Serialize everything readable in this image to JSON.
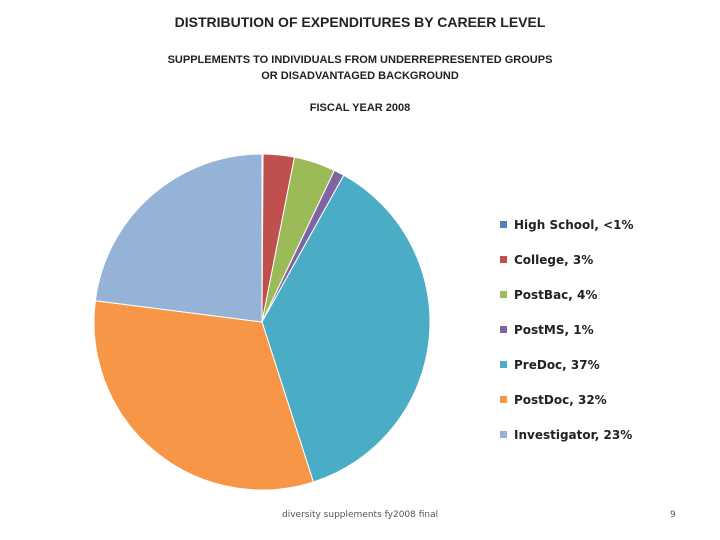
{
  "header": {
    "title": "DISTRIBUTION OF EXPENDITURES BY CAREER LEVEL",
    "subtitle_line1": "SUPPLEMENTS TO INDIVIDUALS FROM UNDERREPRESENTED GROUPS",
    "subtitle_line2": "OR DISADVANTAGED BACKGROUND",
    "fiscal_year": "FISCAL YEAR 2008"
  },
  "chart_data": {
    "type": "pie",
    "title": "DISTRIBUTION OF EXPENDITURES BY CAREER LEVEL",
    "legend_position": "right",
    "slices": [
      {
        "label": "High School, <1%",
        "value": 0.1,
        "color": "#4f81bd"
      },
      {
        "label": "College, 3%",
        "value": 3,
        "color": "#c0504d"
      },
      {
        "label": "PostBac, 4%",
        "value": 4,
        "color": "#9bbb59"
      },
      {
        "label": "PostMS, 1%",
        "value": 1,
        "color": "#8064a2"
      },
      {
        "label": "PreDoc, 37%",
        "value": 37,
        "color": "#4bacc6"
      },
      {
        "label": "PostDoc, 32%",
        "value": 32,
        "color": "#f79646"
      },
      {
        "label": "Investigator, 23%",
        "value": 23,
        "color": "#95b3d7"
      }
    ]
  },
  "footer": {
    "source": "diversity supplements fy2008 final",
    "page_number": "9"
  }
}
